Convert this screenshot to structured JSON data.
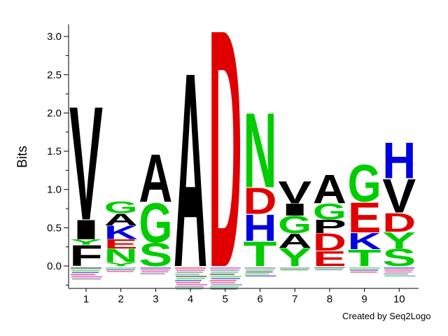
{
  "chart_data": {
    "type": "sequence-logo",
    "ylabel": "Bits",
    "ylim": [
      -0.3,
      3.2
    ],
    "yticks": [
      "0.0",
      "0.5",
      "1.0",
      "1.5",
      "2.0",
      "2.5",
      "3.0"
    ],
    "ytick_values": [
      0,
      0.5,
      1.0,
      1.5,
      2.0,
      2.5,
      3.0
    ],
    "positions": [
      "1",
      "2",
      "3",
      "4",
      "5",
      "6",
      "7",
      "8",
      "9",
      "10"
    ],
    "colors": {
      "hydrophobic": "#000000",
      "polar": "#00cc00",
      "basic": "#0000e0",
      "acidic": "#e00000",
      "other": "#c000c0"
    },
    "stacks": [
      [
        {
          "letter": "F",
          "value": 0.28
        },
        {
          "letter": "Y",
          "value": 0.07
        },
        {
          "letter": "I",
          "value": 0.26
        },
        {
          "letter": "V",
          "value": 1.52
        }
      ],
      [
        {
          "letter": "Y",
          "value": 0.05
        },
        {
          "letter": "N",
          "value": 0.18
        },
        {
          "letter": "E",
          "value": 0.12
        },
        {
          "letter": "K",
          "value": 0.18
        },
        {
          "letter": "A",
          "value": 0.16
        },
        {
          "letter": "G",
          "value": 0.16
        }
      ],
      [
        {
          "letter": "S",
          "value": 0.31
        },
        {
          "letter": "G",
          "value": 0.53
        },
        {
          "letter": "A",
          "value": 0.64
        }
      ],
      [
        {
          "letter": "A",
          "value": 2.6
        }
      ],
      [
        {
          "letter": "D",
          "value": 3.18
        }
      ],
      [
        {
          "letter": "T",
          "value": 0.33
        },
        {
          "letter": "H",
          "value": 0.35
        },
        {
          "letter": "D",
          "value": 0.35
        },
        {
          "letter": "N",
          "value": 1.0
        }
      ],
      [
        {
          "letter": "Y",
          "value": 0.24
        },
        {
          "letter": "A",
          "value": 0.19
        },
        {
          "letter": "G",
          "value": 0.23
        },
        {
          "letter": "I",
          "value": 0.16
        },
        {
          "letter": "V",
          "value": 0.3
        }
      ],
      [
        {
          "letter": "E",
          "value": 0.2
        },
        {
          "letter": "D",
          "value": 0.23
        },
        {
          "letter": "P",
          "value": 0.18
        },
        {
          "letter": "G",
          "value": 0.21
        },
        {
          "letter": "A",
          "value": 0.38
        }
      ],
      [
        {
          "letter": "T",
          "value": 0.22
        },
        {
          "letter": "K",
          "value": 0.22
        },
        {
          "letter": "E",
          "value": 0.4
        },
        {
          "letter": "G",
          "value": 0.49
        }
      ],
      [
        {
          "letter": "S",
          "value": 0.23
        },
        {
          "letter": "Y",
          "value": 0.22
        },
        {
          "letter": "D",
          "value": 0.25
        },
        {
          "letter": "V",
          "value": 0.45
        },
        {
          "letter": "H",
          "value": 0.48
        }
      ]
    ],
    "negative_stacks": [
      0.17,
      0.07,
      0.1,
      0.3,
      0.3,
      0.13,
      0.05,
      0.04,
      0.08,
      0.13
    ]
  },
  "credit": "Created by Seq2Logo"
}
